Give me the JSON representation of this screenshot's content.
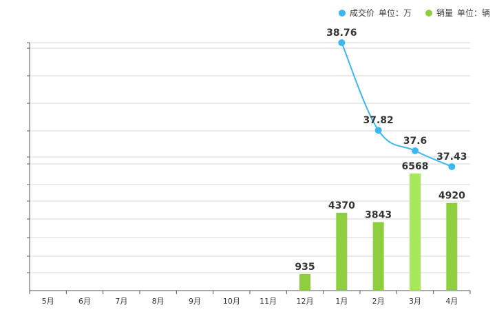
{
  "colors": {
    "price": "#3bb7f2",
    "sales": "#8fcf3f",
    "sales_highlight": "#a6e85a",
    "grid": "#d6d6d6",
    "axis": "#555555"
  },
  "legend": {
    "price": {
      "label": "成交价",
      "unit": "单位：万",
      "icon": "circle-blue"
    },
    "sales": {
      "label": "销量",
      "unit": "单位：辆",
      "icon": "circle-green"
    }
  },
  "chart_data": {
    "type": "bar",
    "categories": [
      "5月",
      "6月",
      "7月",
      "8月",
      "9月",
      "10月",
      "11月",
      "12月",
      "1月",
      "2月",
      "3月",
      "4月"
    ],
    "series": [
      {
        "name": "销量",
        "type": "bar",
        "unit": "单位：辆",
        "values": [
          null,
          null,
          null,
          null,
          null,
          null,
          null,
          935,
          4370,
          3843,
          6568,
          4920
        ],
        "labels": [
          "",
          "",
          "",
          "",
          "",
          "",
          "",
          "935",
          "4370",
          "3843",
          "6568",
          "4920"
        ]
      },
      {
        "name": "成交价",
        "type": "line",
        "unit": "单位：万",
        "values": [
          null,
          null,
          null,
          null,
          null,
          null,
          null,
          null,
          38.76,
          37.82,
          37.6,
          37.43
        ],
        "labels": [
          "",
          "",
          "",
          "",
          "",
          "",
          "",
          "",
          "38.76",
          "37.82",
          "37.6",
          "37.43"
        ]
      }
    ],
    "highlight_index": 10,
    "title": "",
    "xlabel": "",
    "ylabel": "",
    "legend_position": "top-right",
    "grid": true
  }
}
